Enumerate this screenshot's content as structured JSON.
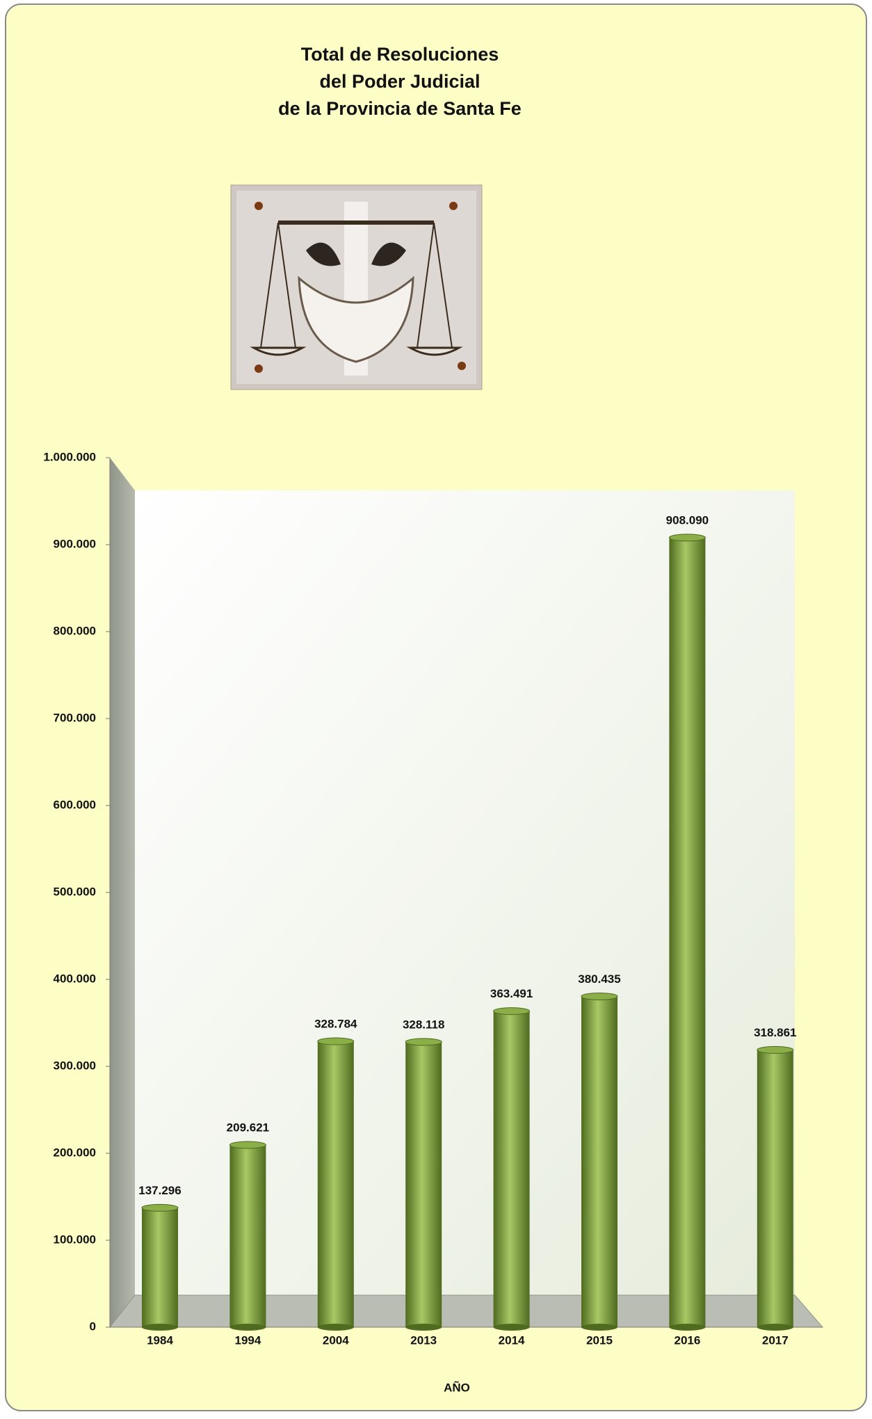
{
  "chart_data": {
    "type": "bar",
    "title": [
      "Total de Resoluciones",
      "del Poder Judicial",
      "de la Provincia de Santa Fe"
    ],
    "x_label": "AÑO",
    "categories": [
      "1984",
      "1994",
      "2004",
      "2013",
      "2014",
      "2015",
      "2016",
      "2017"
    ],
    "values": [
      137296,
      209621,
      328784,
      328118,
      363491,
      380435,
      908090,
      318861
    ],
    "value_labels": [
      "137.296",
      "209.621",
      "328.784",
      "328.118",
      "363.491",
      "380.435",
      "908.090",
      "318.861"
    ],
    "color": "#8cae48",
    "ylim": [
      0,
      1000000
    ],
    "yticks": [
      0,
      {
        "value": 100000,
        "label": "100.000"
      },
      {
        "value": 200000,
        "label": "200.000"
      },
      {
        "value": 300000,
        "label": "300.000"
      },
      {
        "value": 400000,
        "label": "400.000"
      },
      {
        "value": 500000,
        "label": "500.000"
      },
      {
        "value": 600000,
        "label": "600.000"
      },
      {
        "value": 700000,
        "label": "700.000"
      },
      {
        "value": 800000,
        "label": "800.000"
      },
      {
        "value": 900000,
        "label": "900.000"
      },
      {
        "value": 1000000,
        "label": "1.000.000"
      }
    ],
    "grid": false
  }
}
